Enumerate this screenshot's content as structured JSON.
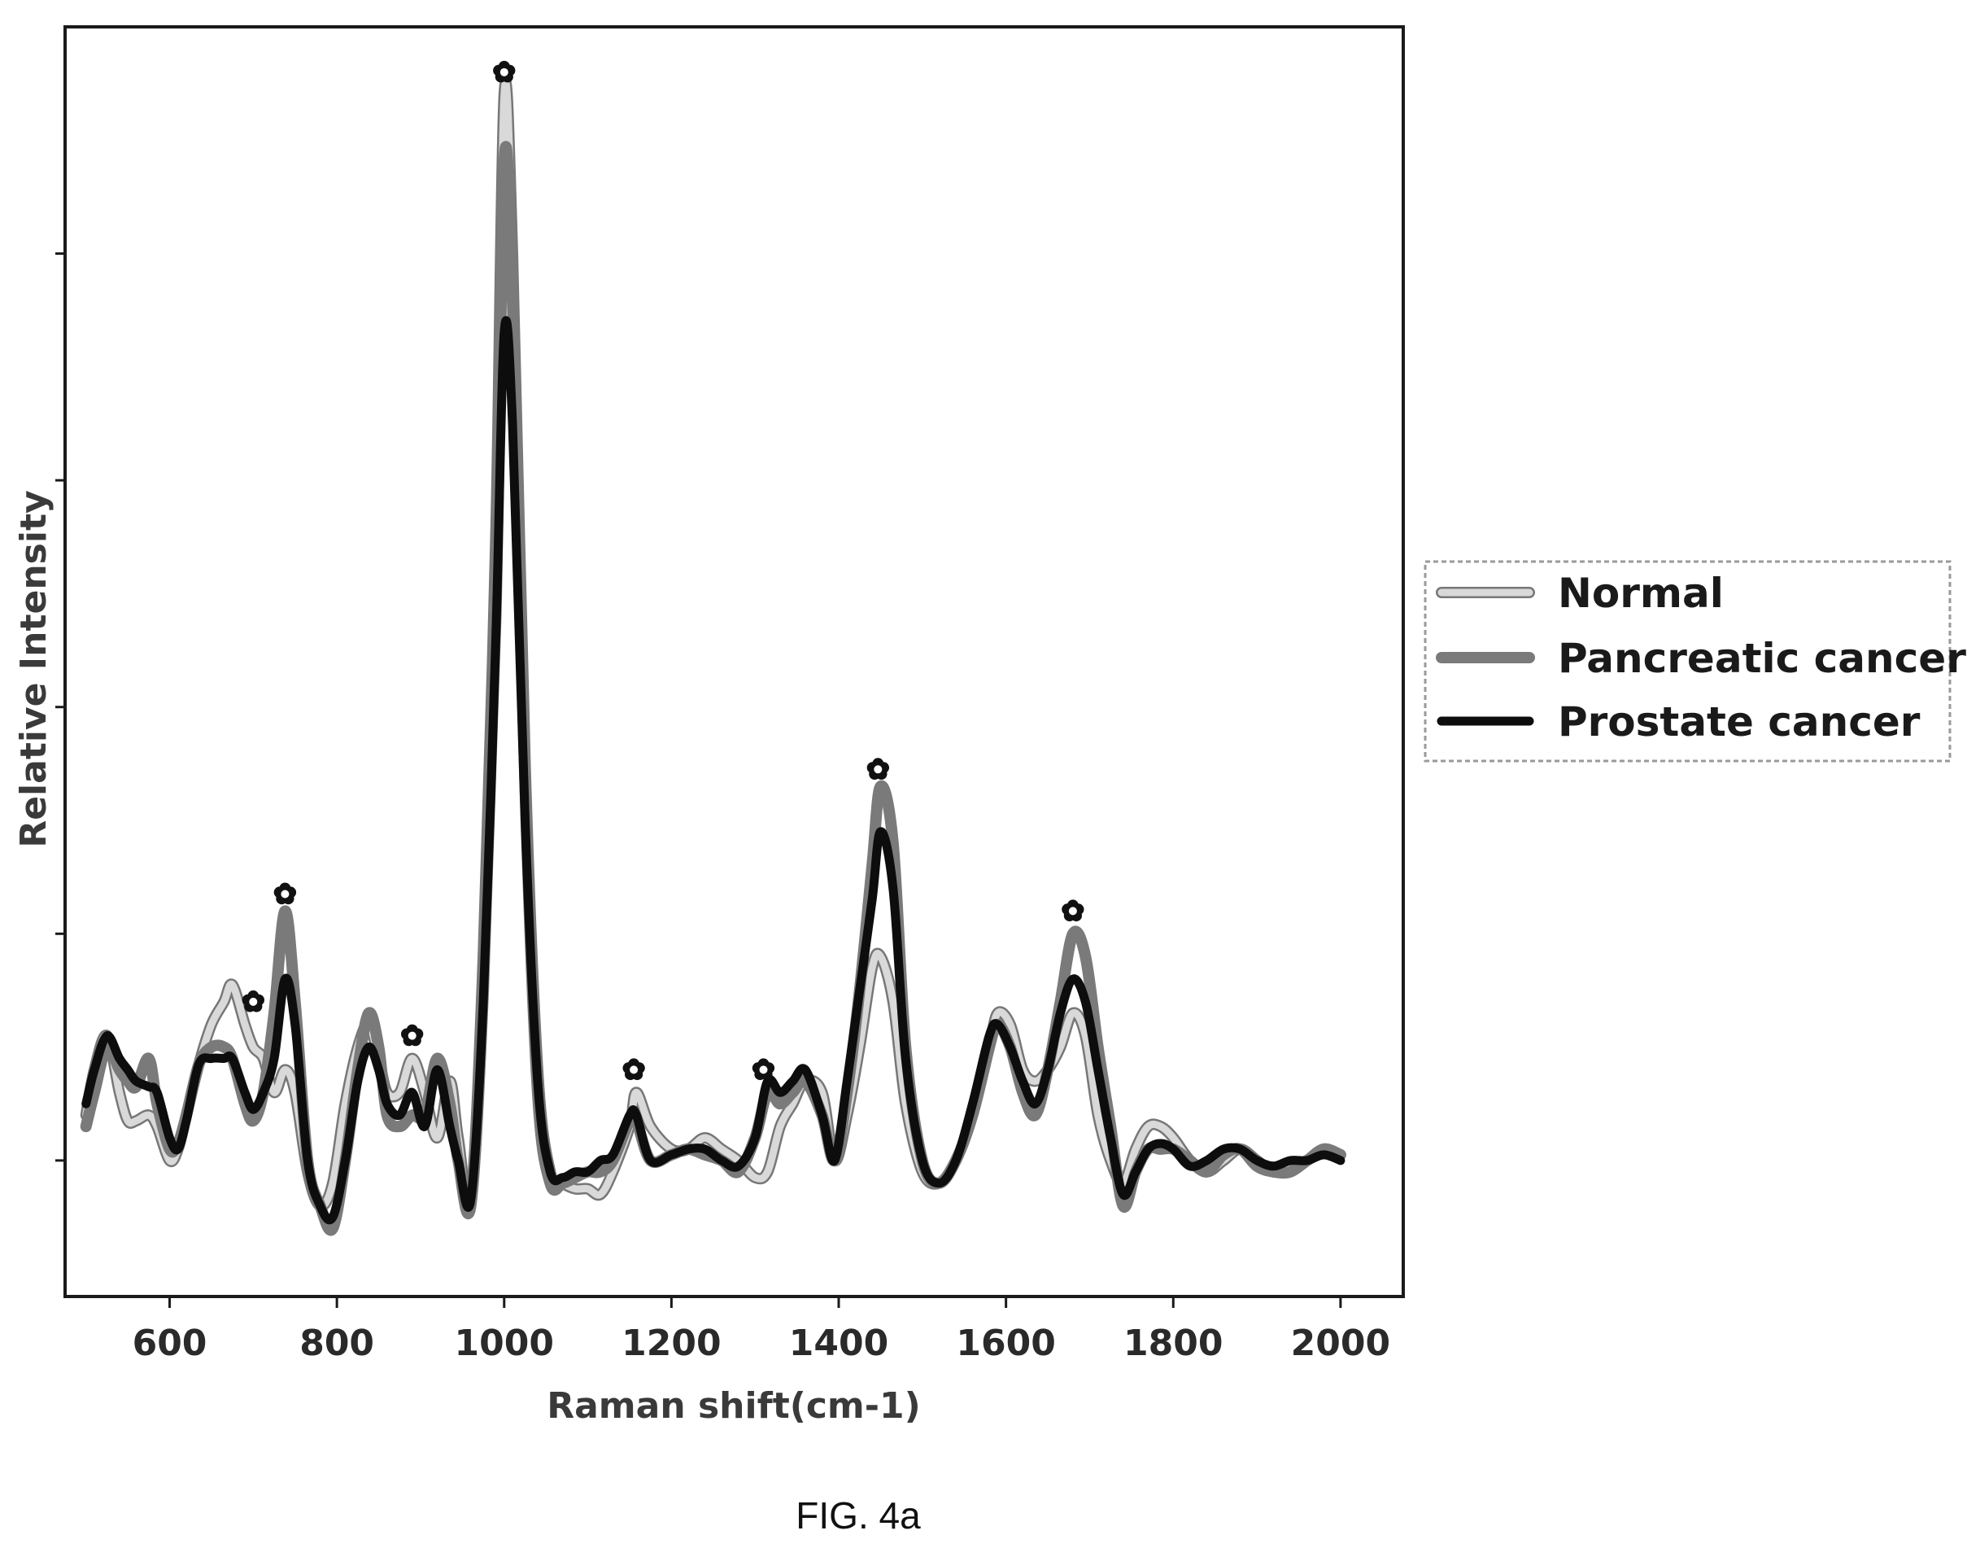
{
  "chart_data": {
    "type": "line",
    "xlabel": "Raman shift(cm-1)",
    "ylabel": "Relative Intensity",
    "xlim": [
      475,
      2075
    ],
    "ylim": [
      -0.12,
      1.0
    ],
    "x_ticks": [
      600,
      800,
      1000,
      1200,
      1400,
      1600,
      1800,
      2000
    ],
    "y_ticks": [
      0.0,
      0.2,
      0.4,
      0.6,
      0.8
    ],
    "y_tick_labels_shown": false,
    "grid": false,
    "legend_position": "right, outside plot",
    "peak_marker_symbol": "✿",
    "peak_markers": [
      {
        "x": 700,
        "y": 0.14
      },
      {
        "x": 738,
        "y": 0.235
      },
      {
        "x": 890,
        "y": 0.11
      },
      {
        "x": 1000,
        "y": 0.96
      },
      {
        "x": 1155,
        "y": 0.08
      },
      {
        "x": 1310,
        "y": 0.08
      },
      {
        "x": 1447,
        "y": 0.345
      },
      {
        "x": 1680,
        "y": 0.22
      }
    ],
    "series": [
      {
        "name": "Normal",
        "color": "#d9d9d9",
        "outline": "#777777",
        "style": "hollow",
        "x": [
          500,
          510,
          525,
          540,
          550,
          560,
          575,
          585,
          600,
          610,
          620,
          635,
          650,
          665,
          675,
          690,
          700,
          712,
          725,
          738,
          750,
          765,
          780,
          795,
          810,
          825,
          838,
          850,
          860,
          875,
          890,
          905,
          920,
          935,
          945,
          960,
          975,
          990,
          1000,
          1010,
          1025,
          1040,
          1055,
          1070,
          1085,
          1100,
          1115,
          1130,
          1150,
          1158,
          1175,
          1200,
          1220,
          1240,
          1260,
          1280,
          1300,
          1315,
          1330,
          1345,
          1360,
          1380,
          1395,
          1410,
          1425,
          1440,
          1450,
          1465,
          1480,
          1500,
          1520,
          1540,
          1560,
          1580,
          1590,
          1605,
          1620,
          1635,
          1650,
          1665,
          1680,
          1695,
          1710,
          1725,
          1740,
          1755,
          1770,
          1785,
          1800,
          1820,
          1840,
          1860,
          1880,
          1900,
          1920,
          1940,
          1960,
          1980,
          2000
        ],
        "y": [
          0.04,
          0.08,
          0.11,
          0.06,
          0.035,
          0.035,
          0.04,
          0.03,
          0.0,
          0.01,
          0.04,
          0.085,
          0.12,
          0.14,
          0.155,
          0.12,
          0.1,
          0.09,
          0.06,
          0.08,
          0.06,
          -0.01,
          -0.04,
          -0.02,
          0.05,
          0.1,
          0.12,
          0.09,
          0.06,
          0.06,
          0.09,
          0.06,
          0.02,
          0.07,
          0.02,
          -0.035,
          0.18,
          0.55,
          0.94,
          0.8,
          0.35,
          0.08,
          -0.01,
          -0.02,
          -0.025,
          -0.025,
          -0.03,
          -0.01,
          0.03,
          0.06,
          0.03,
          0.01,
          0.01,
          0.02,
          0.01,
          0.0,
          -0.015,
          -0.01,
          0.03,
          0.05,
          0.07,
          0.06,
          0.0,
          0.04,
          0.1,
          0.17,
          0.18,
          0.14,
          0.05,
          -0.01,
          -0.02,
          0.0,
          0.04,
          0.1,
          0.13,
          0.12,
          0.08,
          0.07,
          0.08,
          0.1,
          0.13,
          0.11,
          0.04,
          0.0,
          -0.02,
          0.01,
          0.03,
          0.03,
          0.02,
          0.0,
          -0.01,
          0.0,
          0.01,
          0.0,
          -0.01,
          -0.005,
          0.0,
          0.01,
          0.005
        ]
      },
      {
        "name": "Pancreatic cancer",
        "color": "#7a7a7a",
        "style": "solid",
        "x": [
          500,
          510,
          525,
          540,
          550,
          560,
          575,
          585,
          600,
          610,
          620,
          635,
          650,
          665,
          675,
          690,
          700,
          712,
          725,
          738,
          750,
          765,
          780,
          795,
          810,
          825,
          838,
          850,
          860,
          875,
          890,
          905,
          920,
          935,
          945,
          960,
          975,
          990,
          1000,
          1010,
          1025,
          1040,
          1055,
          1070,
          1085,
          1100,
          1115,
          1130,
          1150,
          1158,
          1175,
          1200,
          1220,
          1240,
          1260,
          1280,
          1300,
          1315,
          1330,
          1345,
          1360,
          1380,
          1395,
          1410,
          1425,
          1440,
          1450,
          1465,
          1480,
          1500,
          1520,
          1540,
          1560,
          1580,
          1590,
          1605,
          1620,
          1635,
          1650,
          1665,
          1680,
          1695,
          1710,
          1725,
          1740,
          1755,
          1770,
          1785,
          1800,
          1820,
          1840,
          1860,
          1880,
          1900,
          1920,
          1940,
          1960,
          1980,
          2000
        ],
        "y": [
          0.03,
          0.06,
          0.1,
          0.08,
          0.07,
          0.065,
          0.09,
          0.05,
          0.01,
          0.015,
          0.04,
          0.085,
          0.1,
          0.1,
          0.09,
          0.05,
          0.035,
          0.06,
          0.13,
          0.22,
          0.14,
          0.0,
          -0.04,
          -0.06,
          0.0,
          0.08,
          0.13,
          0.1,
          0.04,
          0.03,
          0.04,
          0.04,
          0.09,
          0.05,
          0.0,
          -0.04,
          0.15,
          0.48,
          0.88,
          0.76,
          0.33,
          0.06,
          -0.02,
          -0.02,
          -0.015,
          -0.01,
          -0.01,
          0.0,
          0.035,
          0.035,
          0.0,
          0.005,
          0.01,
          0.005,
          0.0,
          -0.01,
          0.02,
          0.06,
          0.05,
          0.06,
          0.07,
          0.04,
          0.0,
          0.06,
          0.15,
          0.26,
          0.33,
          0.28,
          0.1,
          0.0,
          -0.02,
          0.0,
          0.04,
          0.1,
          0.12,
          0.1,
          0.06,
          0.04,
          0.08,
          0.14,
          0.2,
          0.18,
          0.1,
          0.03,
          -0.04,
          -0.01,
          0.01,
          0.01,
          0.01,
          0.0,
          -0.01,
          0.005,
          0.01,
          -0.005,
          -0.01,
          -0.01,
          0.0,
          0.01,
          0.005
        ]
      },
      {
        "name": "Prostate cancer",
        "color": "#0d0d0d",
        "style": "solid",
        "x": [
          500,
          510,
          525,
          540,
          550,
          560,
          575,
          585,
          600,
          610,
          620,
          635,
          650,
          665,
          675,
          690,
          700,
          712,
          725,
          738,
          750,
          765,
          780,
          795,
          810,
          825,
          838,
          850,
          860,
          875,
          890,
          905,
          920,
          935,
          945,
          960,
          975,
          990,
          1000,
          1010,
          1025,
          1040,
          1055,
          1070,
          1085,
          1100,
          1115,
          1130,
          1150,
          1158,
          1175,
          1200,
          1220,
          1240,
          1260,
          1280,
          1300,
          1315,
          1330,
          1345,
          1360,
          1380,
          1395,
          1410,
          1425,
          1440,
          1450,
          1465,
          1480,
          1500,
          1520,
          1540,
          1560,
          1580,
          1590,
          1605,
          1620,
          1635,
          1650,
          1665,
          1680,
          1695,
          1710,
          1725,
          1740,
          1755,
          1770,
          1785,
          1800,
          1820,
          1840,
          1860,
          1880,
          1900,
          1920,
          1940,
          1960,
          1980,
          2000
        ],
        "y": [
          0.05,
          0.08,
          0.11,
          0.09,
          0.08,
          0.07,
          0.065,
          0.06,
          0.02,
          0.01,
          0.035,
          0.085,
          0.09,
          0.09,
          0.09,
          0.06,
          0.045,
          0.06,
          0.09,
          0.16,
          0.12,
          0.0,
          -0.04,
          -0.05,
          0.0,
          0.07,
          0.1,
          0.08,
          0.05,
          0.04,
          0.06,
          0.03,
          0.08,
          0.03,
          0.0,
          -0.035,
          0.14,
          0.46,
          0.73,
          0.65,
          0.3,
          0.07,
          -0.01,
          -0.015,
          -0.01,
          -0.01,
          0.0,
          0.005,
          0.04,
          0.04,
          0.0,
          0.005,
          0.01,
          0.01,
          0.0,
          -0.005,
          0.02,
          0.07,
          0.06,
          0.07,
          0.08,
          0.04,
          0.0,
          0.07,
          0.15,
          0.23,
          0.29,
          0.24,
          0.09,
          0.0,
          -0.02,
          0.0,
          0.05,
          0.11,
          0.12,
          0.1,
          0.07,
          0.05,
          0.08,
          0.13,
          0.16,
          0.14,
          0.08,
          0.02,
          -0.03,
          -0.01,
          0.01,
          0.015,
          0.01,
          -0.005,
          0.0,
          0.01,
          0.01,
          0.0,
          -0.005,
          0.0,
          0.0,
          0.005,
          0.0
        ]
      }
    ]
  },
  "figure": {
    "caption": "FIG. 4a"
  }
}
